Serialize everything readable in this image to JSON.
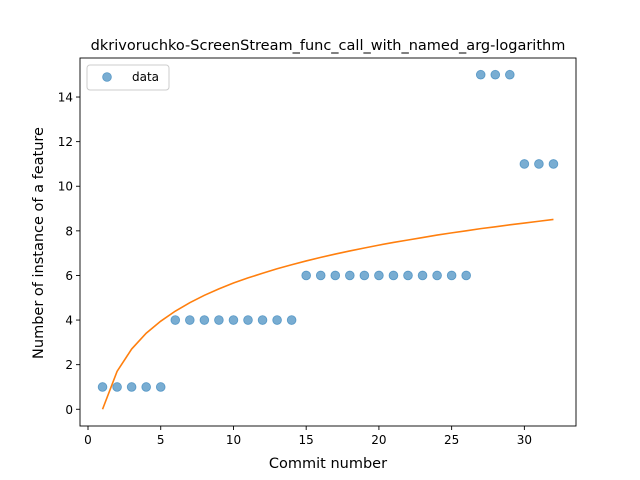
{
  "chart_data": {
    "type": "scatter",
    "title": "dkrivoruchko-ScreenStream_func_call_with_named_arg-logarithm",
    "xlabel": "Commit number",
    "ylabel": "Number of instance of a feature",
    "xlim": [
      -0.55,
      33.55
    ],
    "ylim": [
      -0.75,
      15.75
    ],
    "xticks": [
      0,
      5,
      10,
      15,
      20,
      25,
      30
    ],
    "yticks": [
      0,
      2,
      4,
      6,
      8,
      10,
      12,
      14
    ],
    "legend_position": "upper-left",
    "series": [
      {
        "name": "data",
        "kind": "scatter",
        "color": "#1f77b4",
        "x": [
          1,
          2,
          3,
          4,
          5,
          6,
          7,
          8,
          9,
          10,
          11,
          12,
          13,
          14,
          15,
          16,
          17,
          18,
          19,
          20,
          21,
          22,
          23,
          24,
          25,
          26,
          27,
          28,
          29,
          30,
          31,
          32
        ],
        "y": [
          1,
          1,
          1,
          1,
          1,
          4,
          4,
          4,
          4,
          4,
          4,
          4,
          4,
          4,
          6,
          6,
          6,
          6,
          6,
          6,
          6,
          6,
          6,
          6,
          6,
          6,
          15,
          15,
          15,
          11,
          11,
          11
        ]
      },
      {
        "kind": "line",
        "color": "#ff7f0e",
        "x": [
          1,
          2,
          3,
          4,
          5,
          6,
          7,
          8,
          9,
          10,
          11,
          12,
          13,
          14,
          15,
          16,
          17,
          18,
          19,
          20,
          21,
          22,
          23,
          24,
          25,
          26,
          27,
          28,
          29,
          30,
          31,
          32
        ],
        "y": [
          0,
          1.7,
          2.7,
          3.41,
          3.95,
          4.4,
          4.78,
          5.11,
          5.4,
          5.66,
          5.89,
          6.1,
          6.3,
          6.48,
          6.65,
          6.81,
          6.96,
          7.1,
          7.23,
          7.36,
          7.48,
          7.59,
          7.7,
          7.81,
          7.91,
          8.0,
          8.1,
          8.18,
          8.27,
          8.35,
          8.43,
          8.51
        ]
      }
    ]
  }
}
